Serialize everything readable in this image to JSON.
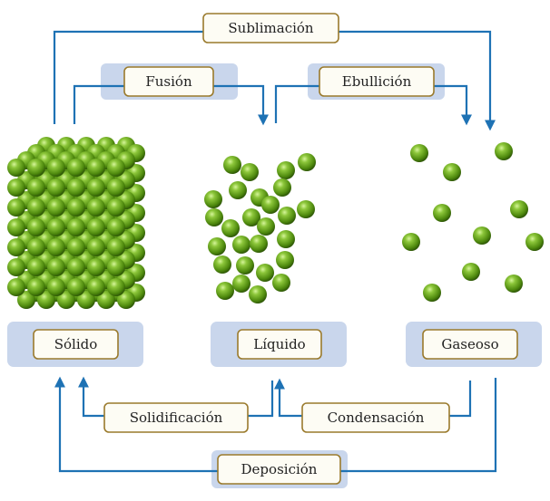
{
  "states": {
    "solid": "Sólido",
    "liquid": "Líquido",
    "gas": "Gaseoso"
  },
  "transitions": {
    "sublimation": "Sublimación",
    "fusion": "Fusión",
    "boiling": "Ebullición",
    "solidification": "Solidificación",
    "condensation": "Condensación",
    "deposition": "Deposición"
  },
  "colors": {
    "arrow": "#1e72b4",
    "state_panel": "#c9d6ec",
    "label_border": "#9a7a2c",
    "label_fill": "#fdfcf4",
    "particle": "#5d9a12",
    "particle_highlight": "#c8ee7a",
    "particle_shadow": "#2f5a06"
  }
}
